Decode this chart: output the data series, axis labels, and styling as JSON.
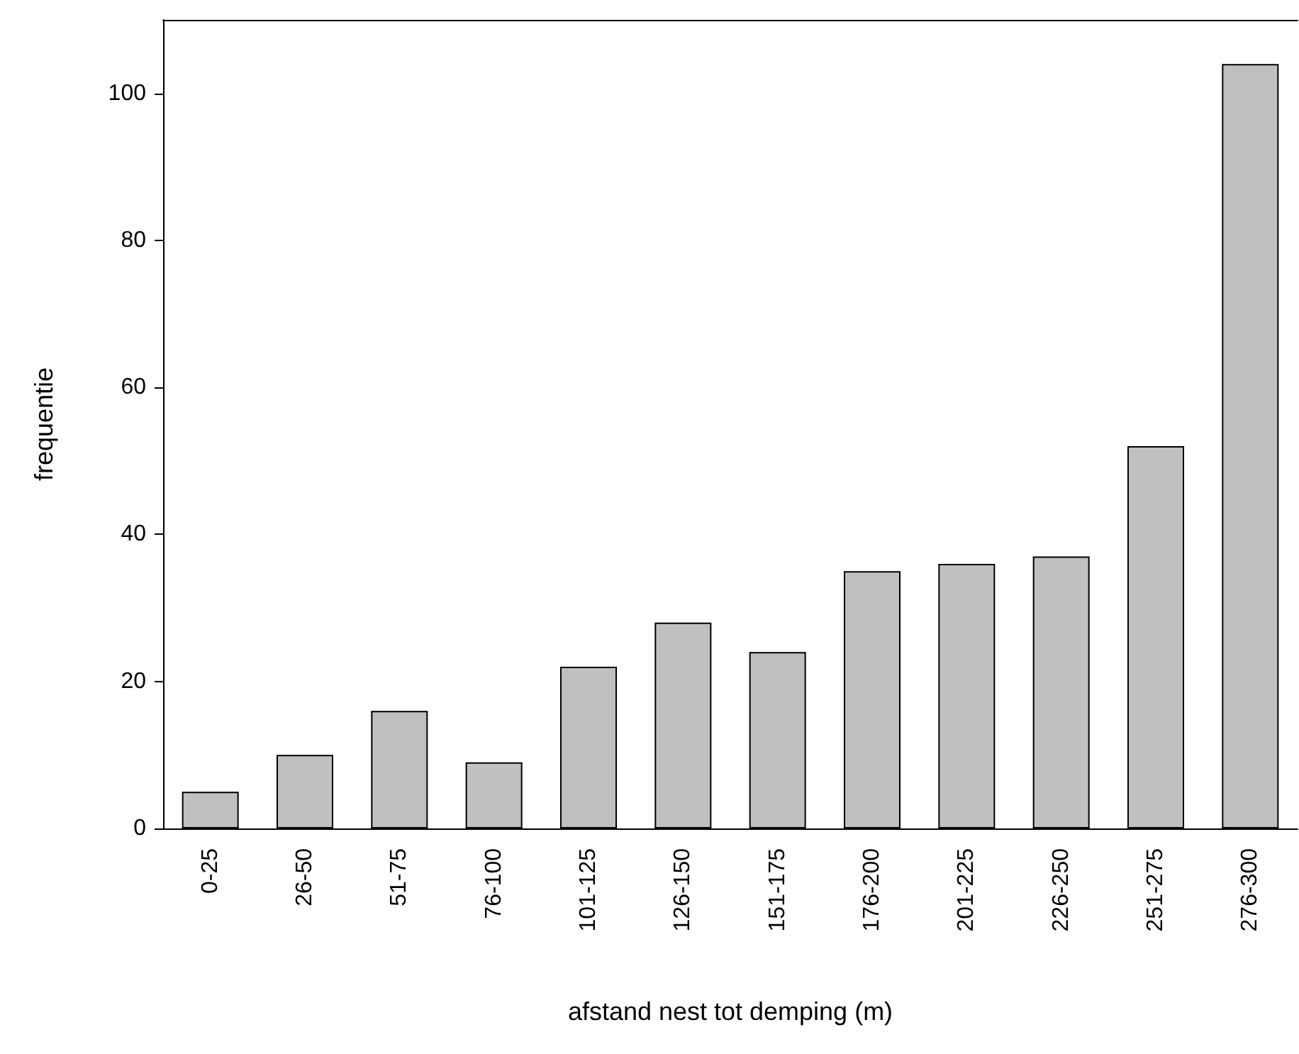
{
  "chart_data": {
    "type": "bar",
    "xlabel": "afstand nest tot demping (m)",
    "ylabel": "frequentie",
    "categories": [
      "0-25",
      "26-50",
      "51-75",
      "76-100",
      "101-125",
      "126-150",
      "151-175",
      "176-200",
      "201-225",
      "226-250",
      "251-275",
      "276-300"
    ],
    "values": [
      5,
      10,
      16,
      9,
      22,
      28,
      24,
      35,
      36,
      37,
      52,
      104
    ],
    "color": "#c0c0c0",
    "ylim": [
      0,
      110
    ],
    "yticks": [
      0,
      20,
      40,
      60,
      80,
      100
    ],
    "grid": false
  }
}
